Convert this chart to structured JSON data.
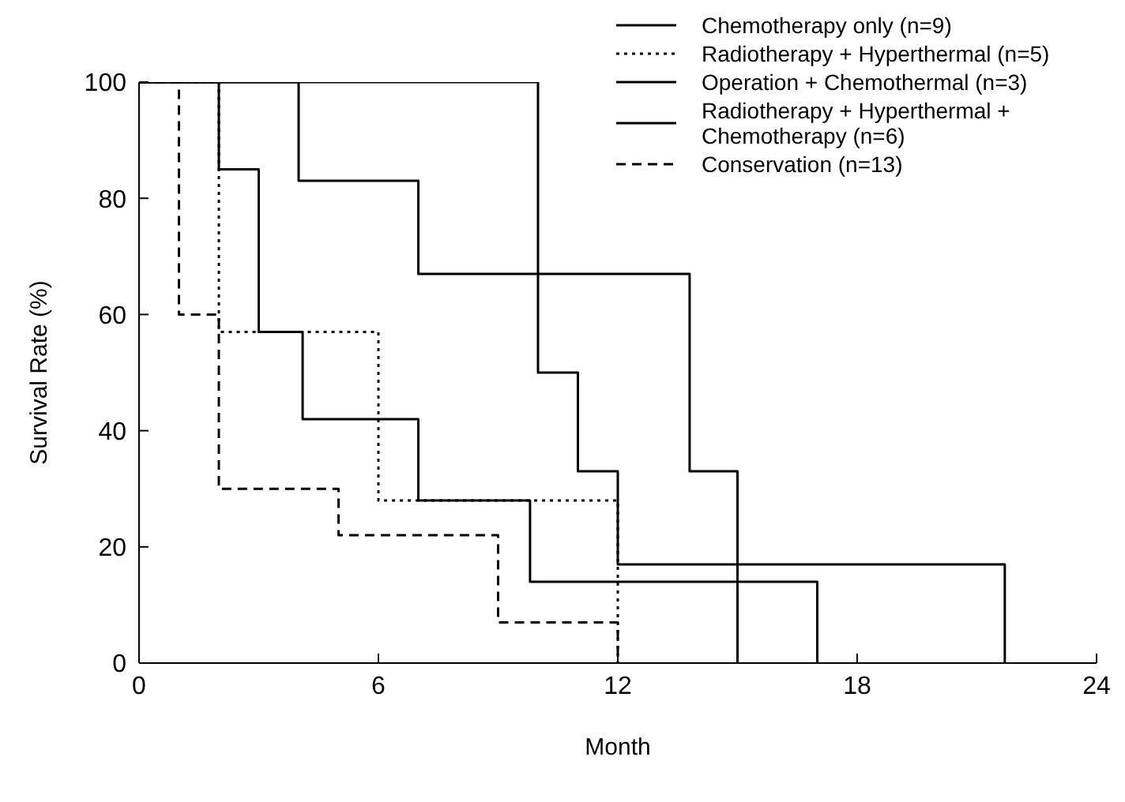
{
  "chart_data": {
    "type": "step",
    "xlabel": "Month",
    "ylabel": "Survival Rate (%)",
    "xlim": [
      0,
      24
    ],
    "xticks": [
      0,
      6,
      12,
      18,
      24
    ],
    "ylim": [
      0,
      100
    ],
    "yticks": [
      0,
      20,
      40,
      60,
      80,
      100
    ],
    "grid": false,
    "legend": "top right",
    "marker": "none",
    "series": [
      {
        "name": "Chemotherapy only (n=9)",
        "color": "#000000",
        "line_style": "solid",
        "x": [
          0,
          2,
          3,
          4.1,
          7,
          9.8,
          17
        ],
        "values": [
          100,
          85,
          57,
          42,
          28,
          14,
          0
        ]
      },
      {
        "name": "Radiotherapy + Hyperthermal (n=5)",
        "color": "#000000",
        "line_style": "dotted",
        "x": [
          0,
          2,
          6,
          12
        ],
        "values": [
          100,
          57,
          28,
          0
        ]
      },
      {
        "name": "Operation + Chemothermal (n=3)",
        "color": "#000000",
        "line_style": "solid",
        "x": [
          0,
          4,
          7,
          10,
          11,
          12,
          21.7
        ],
        "values": [
          100,
          83,
          67,
          50,
          33,
          17,
          0
        ]
      },
      {
        "name": "Radiotherapy + Hyperthermal + Chemotherapy (n=6)",
        "color": "#000000",
        "line_style": "solid",
        "x": [
          0,
          10,
          13.8,
          15
        ],
        "values": [
          100,
          67,
          33,
          0
        ]
      },
      {
        "name": "Conservation (n=13)",
        "color": "#000000",
        "line_style": "dashed",
        "x": [
          0,
          1,
          2,
          5,
          9,
          12
        ],
        "values": [
          100,
          60,
          30,
          22,
          7,
          0
        ]
      }
    ]
  }
}
